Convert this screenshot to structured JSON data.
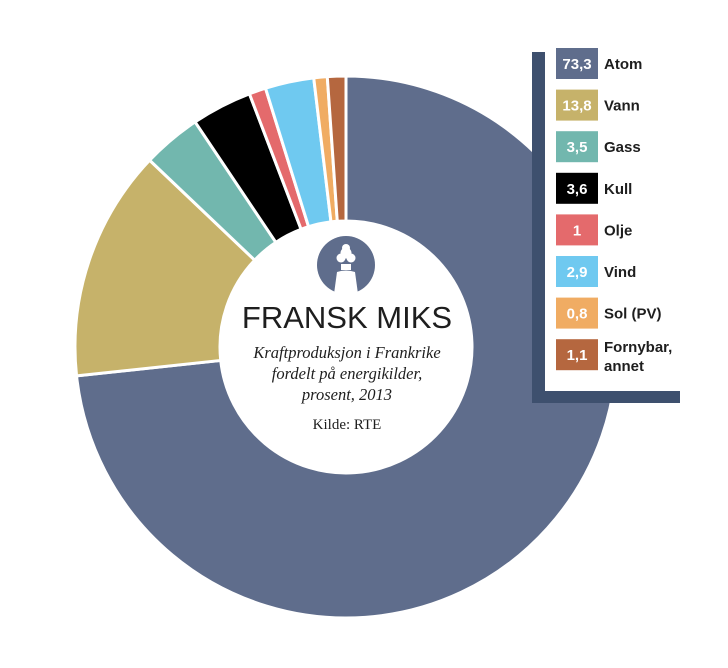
{
  "center": {
    "title": "FRANSK MIKS",
    "subtitle_line1": "Kraftproduksjon i Frankrike",
    "subtitle_line2": "fordelt på energikilder,",
    "subtitle_line3": "prosent, 2013",
    "source": "Kilde: RTE"
  },
  "chart_data": {
    "type": "pie",
    "style": "donut",
    "legend_position": "top-right",
    "slices": [
      {
        "value": 73.3,
        "value_label": "73,3",
        "label": "Atom",
        "color": "#5f6d8c"
      },
      {
        "value": 13.8,
        "value_label": "13,8",
        "label": "Vann",
        "color": "#c6b26a"
      },
      {
        "value": 3.5,
        "value_label": "3,5",
        "label": "Gass",
        "color": "#72b7ae"
      },
      {
        "value": 3.6,
        "value_label": "3,6",
        "label": "Kull",
        "color": "#000000"
      },
      {
        "value": 1,
        "value_label": "1",
        "label": "Olje",
        "color": "#e46a6c"
      },
      {
        "value": 2.9,
        "value_label": "2,9",
        "label": "Vind",
        "color": "#6fc9f0"
      },
      {
        "value": 0.8,
        "value_label": "0,8",
        "label": "Sol (PV)",
        "color": "#f0ac63"
      },
      {
        "value": 1.1,
        "value_label": "1,1",
        "label": "Fornybar, annet",
        "color": "#b5673f"
      }
    ]
  },
  "icons": {
    "center_icon": "nuclear-plant-icon"
  }
}
